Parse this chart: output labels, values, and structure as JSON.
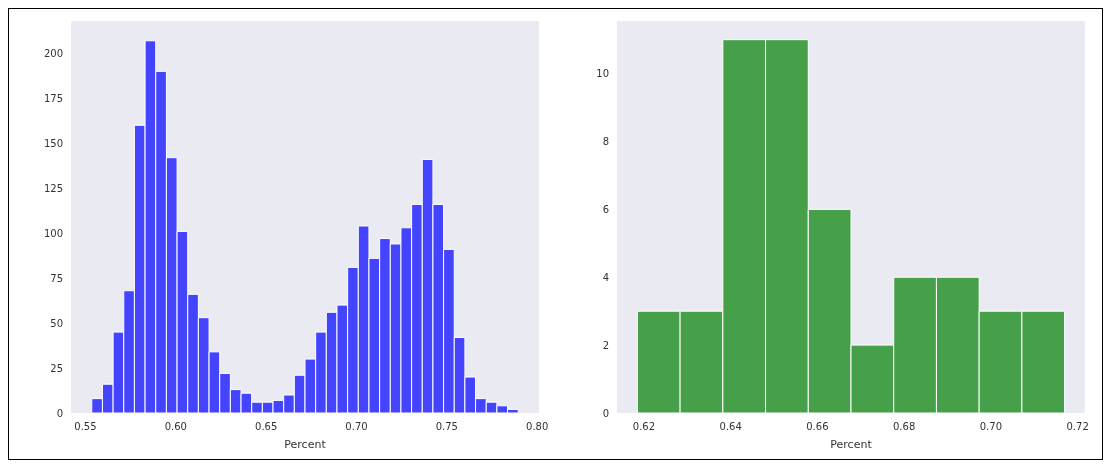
{
  "chart_data": [
    {
      "type": "histogram",
      "xlabel": "Percent",
      "color": "#4444ff",
      "grid": false,
      "bins": [
        0.5535,
        0.5594,
        0.5653,
        0.5712,
        0.5771,
        0.583,
        0.5889,
        0.5948,
        0.6007,
        0.6066,
        0.6125,
        0.6184,
        0.6243,
        0.6302,
        0.6361,
        0.642,
        0.6479,
        0.6538,
        0.6597,
        0.6656,
        0.6715,
        0.6774,
        0.6833,
        0.6892,
        0.6951,
        0.701,
        0.7069,
        0.7128,
        0.7187,
        0.7246,
        0.7305,
        0.7364,
        0.7423,
        0.7482,
        0.7541,
        0.76,
        0.7659,
        0.7718,
        0.7777,
        0.7836,
        0.7895
      ],
      "values": [
        8,
        16,
        45,
        68,
        160,
        207,
        190,
        142,
        101,
        66,
        53,
        34,
        22,
        13,
        11,
        6,
        6,
        7,
        10,
        21,
        30,
        45,
        56,
        60,
        81,
        104,
        86,
        97,
        94,
        103,
        116,
        141,
        116,
        91,
        42,
        20,
        8,
        6,
        4,
        2
      ],
      "xlim": [
        0.542,
        0.801
      ],
      "xticks": [
        0.55,
        {
          "value": 0.6,
          "label": "0.60"
        },
        0.65,
        {
          "value": 0.7,
          "label": "0.70"
        },
        0.75,
        {
          "value": 0.8,
          "label": "0.80"
        }
      ],
      "ylim": [
        0,
        218
      ],
      "yticks": [
        0,
        25,
        50,
        75,
        100,
        125,
        150,
        175,
        200
      ]
    },
    {
      "type": "histogram",
      "xlabel": "Percent",
      "color": "#46a049",
      "grid": false,
      "bins": [
        0.6185,
        0.62835,
        0.6382,
        0.64805,
        0.6579,
        0.66775,
        0.6776,
        0.68745,
        0.6973,
        0.70715,
        0.717
      ],
      "values": [
        3,
        3,
        11,
        11,
        6,
        2,
        4,
        4,
        3,
        3
      ],
      "xlim": [
        0.6138,
        0.7217
      ],
      "xticks": [
        0.62,
        0.64,
        0.66,
        0.68,
        {
          "value": 0.7,
          "label": "0.70"
        },
        0.72
      ],
      "ylim": [
        0,
        11.55
      ],
      "yticks": [
        0,
        2,
        4,
        6,
        8,
        10
      ]
    }
  ]
}
